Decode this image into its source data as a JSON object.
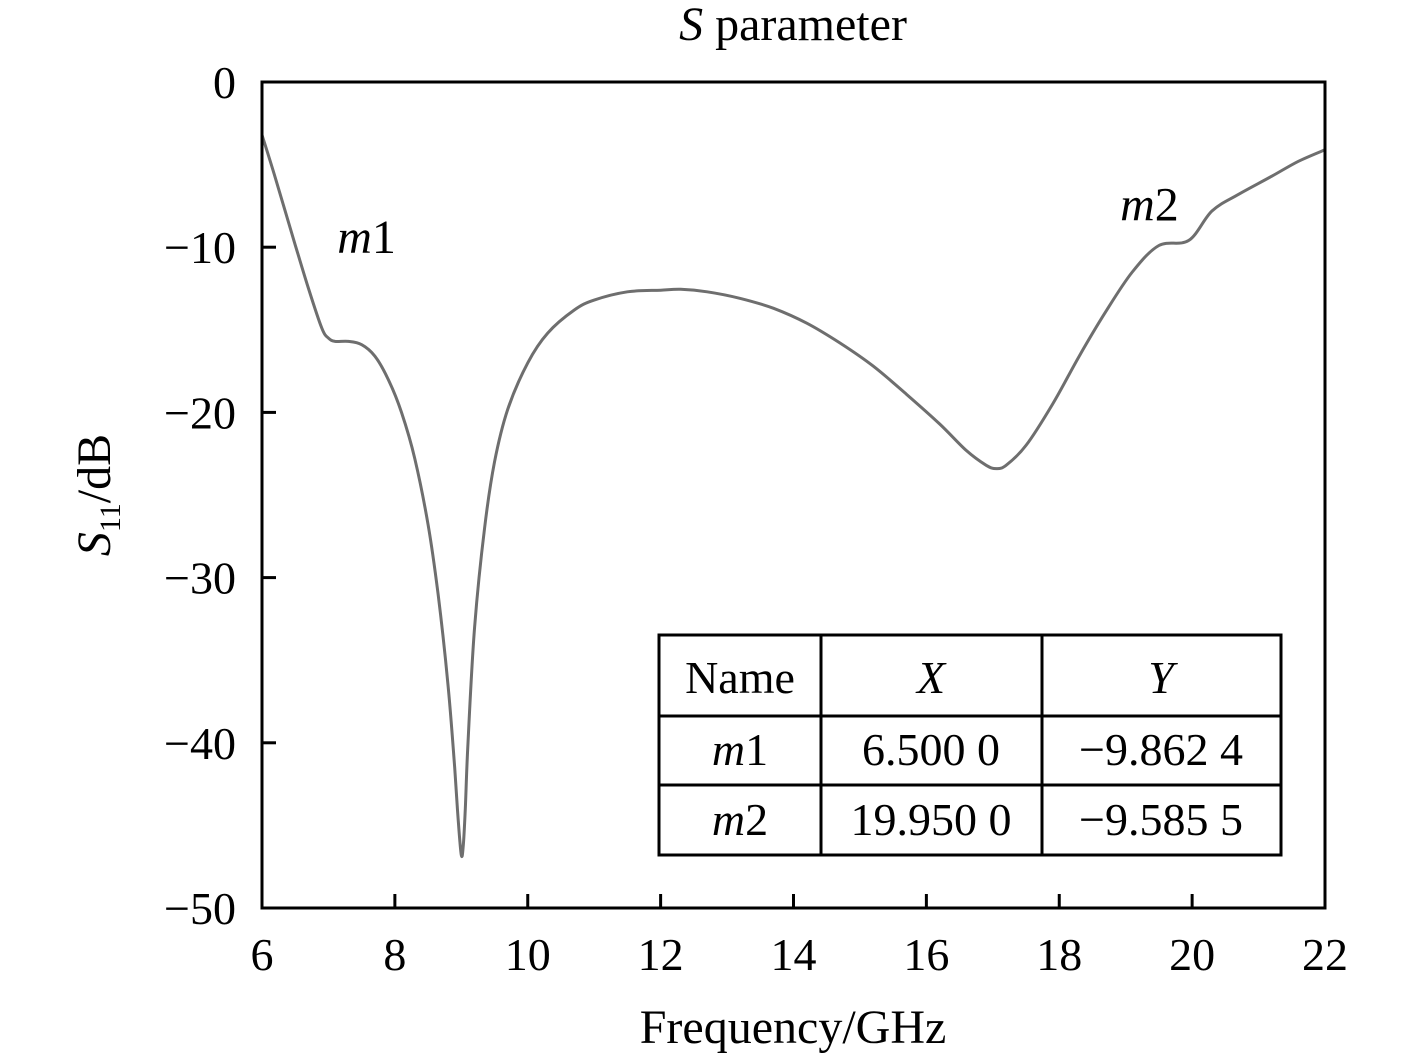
{
  "chart_data": {
    "type": "line",
    "title": {
      "italic": "S",
      "rest": " parameter"
    },
    "xlabel": "Frequency/GHz",
    "ylabel": {
      "main": "S",
      "sub": "11",
      "rest": "/dB"
    },
    "xlim": [
      6,
      22
    ],
    "ylim": [
      -50,
      0
    ],
    "xticks": [
      6,
      8,
      10,
      12,
      14,
      16,
      18,
      20,
      22
    ],
    "yticks": [
      0,
      -10,
      -20,
      -30,
      -40,
      -50
    ],
    "xtick_labels": [
      "6",
      "8",
      "10",
      "12",
      "14",
      "16",
      "18",
      "20",
      "22"
    ],
    "ytick_labels": [
      "0",
      "−10",
      "−20",
      "−30",
      "−40",
      "−50"
    ],
    "grid": false,
    "series": [
      {
        "x": [
          6.0,
          6.2,
          6.5,
          6.7,
          6.9,
          7.0,
          7.1,
          7.3,
          7.5,
          7.7,
          7.9,
          8.1,
          8.3,
          8.5,
          8.65,
          8.8,
          8.9,
          8.95,
          9.0,
          9.03,
          9.06,
          9.1,
          9.2,
          9.35,
          9.5,
          9.7,
          10.0,
          10.3,
          10.7,
          11.0,
          11.5,
          12.0,
          12.3,
          12.7,
          13.2,
          13.7,
          14.2,
          14.7,
          15.2,
          15.7,
          16.2,
          16.6,
          16.9,
          17.05,
          17.2,
          17.5,
          17.9,
          18.3,
          18.7,
          19.1,
          19.5,
          19.95,
          20.3,
          20.7,
          21.2,
          21.6,
          22.0
        ],
        "y": [
          -3.2,
          -5.8,
          -9.86,
          -12.5,
          -14.9,
          -15.5,
          -15.7,
          -15.7,
          -15.9,
          -16.6,
          -18.0,
          -20.0,
          -22.8,
          -26.8,
          -31.0,
          -36.5,
          -41.5,
          -44.5,
          -46.8,
          -46.2,
          -44.0,
          -40.0,
          -33.0,
          -27.0,
          -23.0,
          -19.8,
          -17.0,
          -15.2,
          -13.8,
          -13.2,
          -12.7,
          -12.6,
          -12.55,
          -12.7,
          -13.1,
          -13.7,
          -14.6,
          -15.8,
          -17.2,
          -18.9,
          -20.7,
          -22.3,
          -23.2,
          -23.4,
          -23.2,
          -22.0,
          -19.5,
          -16.6,
          -13.9,
          -11.5,
          -9.9,
          -9.59,
          -7.8,
          -6.8,
          -5.7,
          -4.8,
          -4.1
        ]
      }
    ],
    "markers": [
      {
        "name": "m",
        "digit": "1",
        "x": 6.5,
        "y": -9.8624
      },
      {
        "name": "m",
        "digit": "2",
        "x": 19.95,
        "y": -9.5855
      }
    ],
    "marker_table": {
      "headers": [
        "Name",
        "X",
        "Y"
      ],
      "rows": [
        {
          "name": "m",
          "digit": "1",
          "x": "6.500 0",
          "y": "−9.862 4"
        },
        {
          "name": "m",
          "digit": "2",
          "x": "19.950 0",
          "y": "−9.585 5"
        }
      ]
    },
    "line_color": "#6e6e6e",
    "axis_color": "#000000"
  }
}
